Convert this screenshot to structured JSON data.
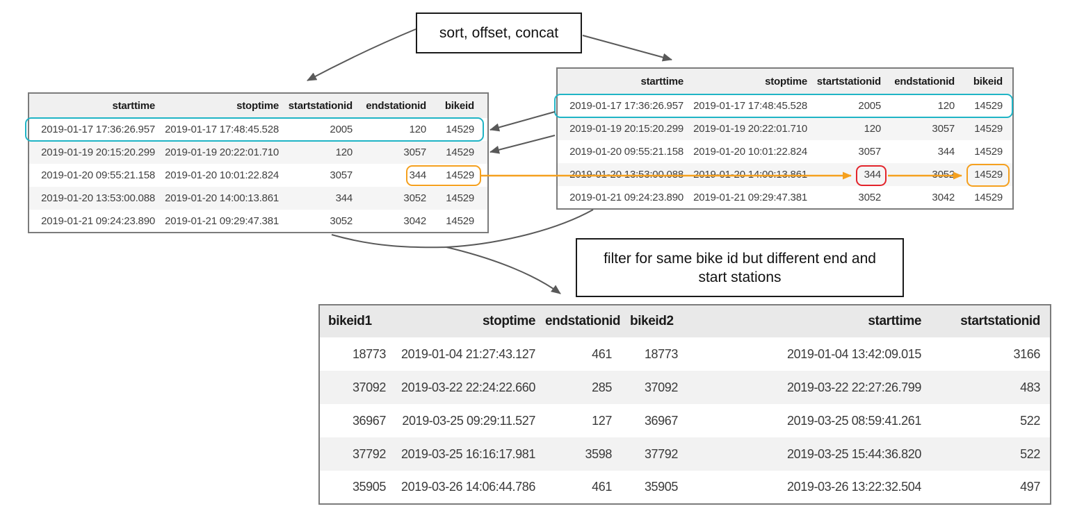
{
  "labels": {
    "sort_offset_concat": "sort, offset, concat",
    "filter": "filter for same bike id but different end and\nstart stations"
  },
  "left_table": {
    "columns": [
      "starttime",
      "stoptime",
      "startstationid",
      "endstationid",
      "bikeid"
    ],
    "rows": [
      [
        "2019-01-17 17:36:26.957",
        "2019-01-17 17:48:45.528",
        "2005",
        "120",
        "14529"
      ],
      [
        "2019-01-19 20:15:20.299",
        "2019-01-19 20:22:01.710",
        "120",
        "3057",
        "14529"
      ],
      [
        "2019-01-20 09:55:21.158",
        "2019-01-20 10:01:22.824",
        "3057",
        "344",
        "14529"
      ],
      [
        "2019-01-20 13:53:00.088",
        "2019-01-20 14:00:13.861",
        "344",
        "3052",
        "14529"
      ],
      [
        "2019-01-21 09:24:23.890",
        "2019-01-21 09:29:47.381",
        "3052",
        "3042",
        "14529"
      ]
    ]
  },
  "right_table": {
    "columns": [
      "starttime",
      "stoptime",
      "startstationid",
      "endstationid",
      "bikeid"
    ],
    "rows": [
      [
        "2019-01-17 17:36:26.957",
        "2019-01-17 17:48:45.528",
        "2005",
        "120",
        "14529"
      ],
      [
        "2019-01-19 20:15:20.299",
        "2019-01-19 20:22:01.710",
        "120",
        "3057",
        "14529"
      ],
      [
        "2019-01-20 09:55:21.158",
        "2019-01-20 10:01:22.824",
        "3057",
        "344",
        "14529"
      ],
      [
        "2019-01-20 13:53:00.088",
        "2019-01-20 14:00:13.861",
        "344",
        "3052",
        "14529"
      ],
      [
        "2019-01-21 09:24:23.890",
        "2019-01-21 09:29:47.381",
        "3052",
        "3042",
        "14529"
      ]
    ]
  },
  "result_table": {
    "columns": [
      "bikeid1",
      "stoptime",
      "endstationid",
      "bikeid2",
      "starttime",
      "startstationid"
    ],
    "rows": [
      [
        "18773",
        "2019-01-04 21:27:43.127",
        "461",
        "18773",
        "2019-01-04 13:42:09.015",
        "3166"
      ],
      [
        "37092",
        "2019-03-22 22:24:22.660",
        "285",
        "37092",
        "2019-03-22 22:27:26.799",
        "483"
      ],
      [
        "36967",
        "2019-03-25 09:29:11.527",
        "127",
        "36967",
        "2019-03-25 08:59:41.261",
        "522"
      ],
      [
        "37792",
        "2019-03-25 16:16:17.981",
        "3598",
        "37792",
        "2019-03-25 15:44:36.820",
        "522"
      ],
      [
        "35905",
        "2019-03-26 14:06:44.786",
        "461",
        "35905",
        "2019-03-26 13:22:32.504",
        "497"
      ]
    ]
  },
  "highlights": {
    "teal_row_left": "row 1 of left table",
    "teal_row_right": "row 1 of right table",
    "orange_cells_left": "344 / 14529 in row 3 of left table",
    "red_cell_right": "344 in row 4 of right table",
    "orange_cell_right": "14529 in row 4 of right table"
  },
  "colors": {
    "teal": "#1FB4C5",
    "orange": "#F5A01E",
    "red": "#E3242B",
    "arrow_gray": "#595959",
    "table_border": "#7b7b7b"
  }
}
